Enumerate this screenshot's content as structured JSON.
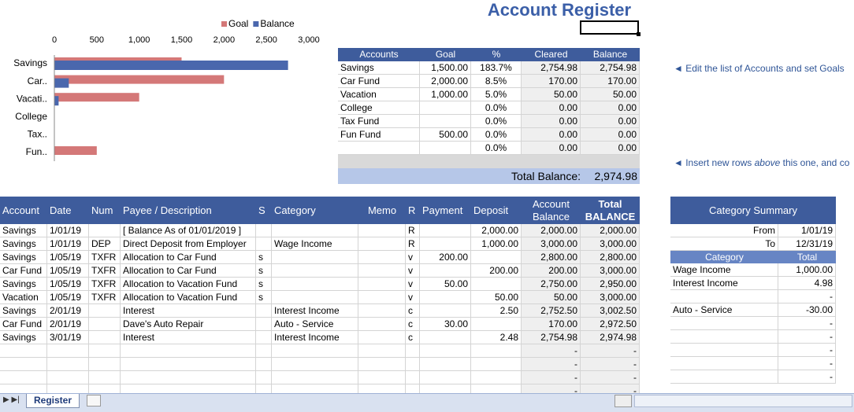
{
  "title": "Account Register",
  "chart_data": {
    "type": "bar",
    "orientation": "horizontal",
    "categories": [
      "Savings",
      "Car..",
      "Vacati..",
      "College",
      "Tax..",
      "Fun.."
    ],
    "series": [
      {
        "name": "Goal",
        "color": "#d47878",
        "values": [
          1500,
          2000,
          1000,
          null,
          null,
          500
        ]
      },
      {
        "name": "Balance",
        "color": "#4a67ad",
        "values": [
          2754.98,
          170,
          50,
          0,
          0,
          0
        ]
      }
    ],
    "xlim": [
      0,
      3000
    ],
    "xticks": [
      0,
      500,
      {
        "value": 1000,
        "label": "1,000"
      },
      {
        "value": 1500,
        "label": "1,500"
      },
      {
        "value": 2000,
        "label": "2,000"
      },
      {
        "value": 2500,
        "label": "2,500"
      },
      {
        "value": 3000,
        "label": "3,000"
      }
    ],
    "legend": "top",
    "grid": false
  },
  "accounts": {
    "header": [
      "Accounts",
      "Goal",
      "%",
      "Cleared",
      "Balance"
    ],
    "rows": [
      [
        "Savings",
        "1,500.00",
        "183.7%",
        "2,754.98",
        "2,754.98"
      ],
      [
        "Car Fund",
        "2,000.00",
        "8.5%",
        "170.00",
        "170.00"
      ],
      [
        "Vacation",
        "1,000.00",
        "5.0%",
        "50.00",
        "50.00"
      ],
      [
        "College",
        null,
        "0.0%",
        "0.00",
        "0.00"
      ],
      [
        "Tax Fund",
        null,
        "0.0%",
        "0.00",
        "0.00"
      ],
      [
        "Fun Fund",
        "500.00",
        "0.0%",
        "0.00",
        "0.00"
      ],
      [
        null,
        null,
        "0.0%",
        "0.00",
        "0.00"
      ]
    ],
    "total_label": "Total Balance:",
    "total_value": "2,974.98"
  },
  "notes": {
    "edit": "◄ Edit the list of Accounts and set Goals",
    "insert": {
      "before": "◄ Insert new rows",
      "emphasis": "above",
      "after": "this one, and co"
    }
  },
  "register": {
    "header": [
      "Account",
      "Date",
      "Num",
      "Payee / Description",
      "S",
      "Category",
      "Memo",
      "R",
      "Payment",
      "Deposit",
      "Account Balance",
      "Total BALANCE"
    ],
    "rows": [
      [
        "Savings",
        "1/01/19",
        null,
        "[ Balance As of 01/01/2019 ]",
        null,
        null,
        null,
        "R",
        null,
        "2,000.00",
        "2,000.00",
        "2,000.00"
      ],
      [
        "Savings",
        "1/01/19",
        "DEP",
        "Direct Deposit from Employer",
        null,
        "Wage Income",
        null,
        "R",
        null,
        "1,000.00",
        "3,000.00",
        "3,000.00"
      ],
      [
        "Savings",
        "1/05/19",
        "TXFR",
        "Allocation to Car Fund",
        "s",
        null,
        null,
        "v",
        "200.00",
        null,
        "2,800.00",
        "2,800.00"
      ],
      [
        "Car Fund",
        "1/05/19",
        "TXFR",
        "Allocation to Car Fund",
        "s",
        null,
        null,
        "v",
        null,
        "200.00",
        "200.00",
        "3,000.00"
      ],
      [
        "Savings",
        "1/05/19",
        "TXFR",
        "Allocation to Vacation Fund",
        "s",
        null,
        null,
        "v",
        "50.00",
        null,
        "2,750.00",
        "2,950.00"
      ],
      [
        "Vacation",
        "1/05/19",
        "TXFR",
        "Allocation to Vacation Fund",
        "s",
        null,
        null,
        "v",
        null,
        "50.00",
        "50.00",
        "3,000.00"
      ],
      [
        "Savings",
        "2/01/19",
        null,
        "Interest",
        null,
        "Interest Income",
        null,
        "c",
        null,
        "2.50",
        "2,752.50",
        "3,002.50"
      ],
      [
        "Car Fund",
        "2/01/19",
        null,
        "Dave's Auto Repair",
        null,
        "Auto - Service",
        null,
        "c",
        "30.00",
        null,
        "170.00",
        "2,972.50"
      ],
      [
        "Savings",
        "3/01/19",
        null,
        "Interest",
        null,
        "Interest Income",
        null,
        "c",
        null,
        "2.48",
        "2,754.98",
        "2,974.98"
      ],
      [
        null,
        null,
        null,
        null,
        null,
        null,
        null,
        null,
        null,
        null,
        "-",
        "-"
      ],
      [
        null,
        null,
        null,
        null,
        null,
        null,
        null,
        null,
        null,
        null,
        "-",
        "-"
      ],
      [
        null,
        null,
        null,
        null,
        null,
        null,
        null,
        null,
        null,
        null,
        "-",
        "-"
      ],
      [
        null,
        null,
        null,
        null,
        null,
        null,
        null,
        null,
        null,
        null,
        "-",
        "-"
      ]
    ]
  },
  "category_summary": {
    "title": "Category Summary",
    "from_label": "From",
    "from": "1/01/19",
    "to_label": "To",
    "to": "12/31/19",
    "header": [
      "Category",
      "Total"
    ],
    "rows": [
      [
        "Wage Income",
        "1,000.00"
      ],
      [
        "Interest Income",
        "4.98"
      ],
      [
        null,
        "-"
      ],
      [
        "Auto - Service",
        "-30.00"
      ],
      [
        null,
        "-"
      ],
      [
        null,
        "-"
      ],
      [
        null,
        "-"
      ],
      [
        null,
        "-"
      ],
      [
        null,
        "-"
      ]
    ]
  },
  "sheet_tab": "Register"
}
